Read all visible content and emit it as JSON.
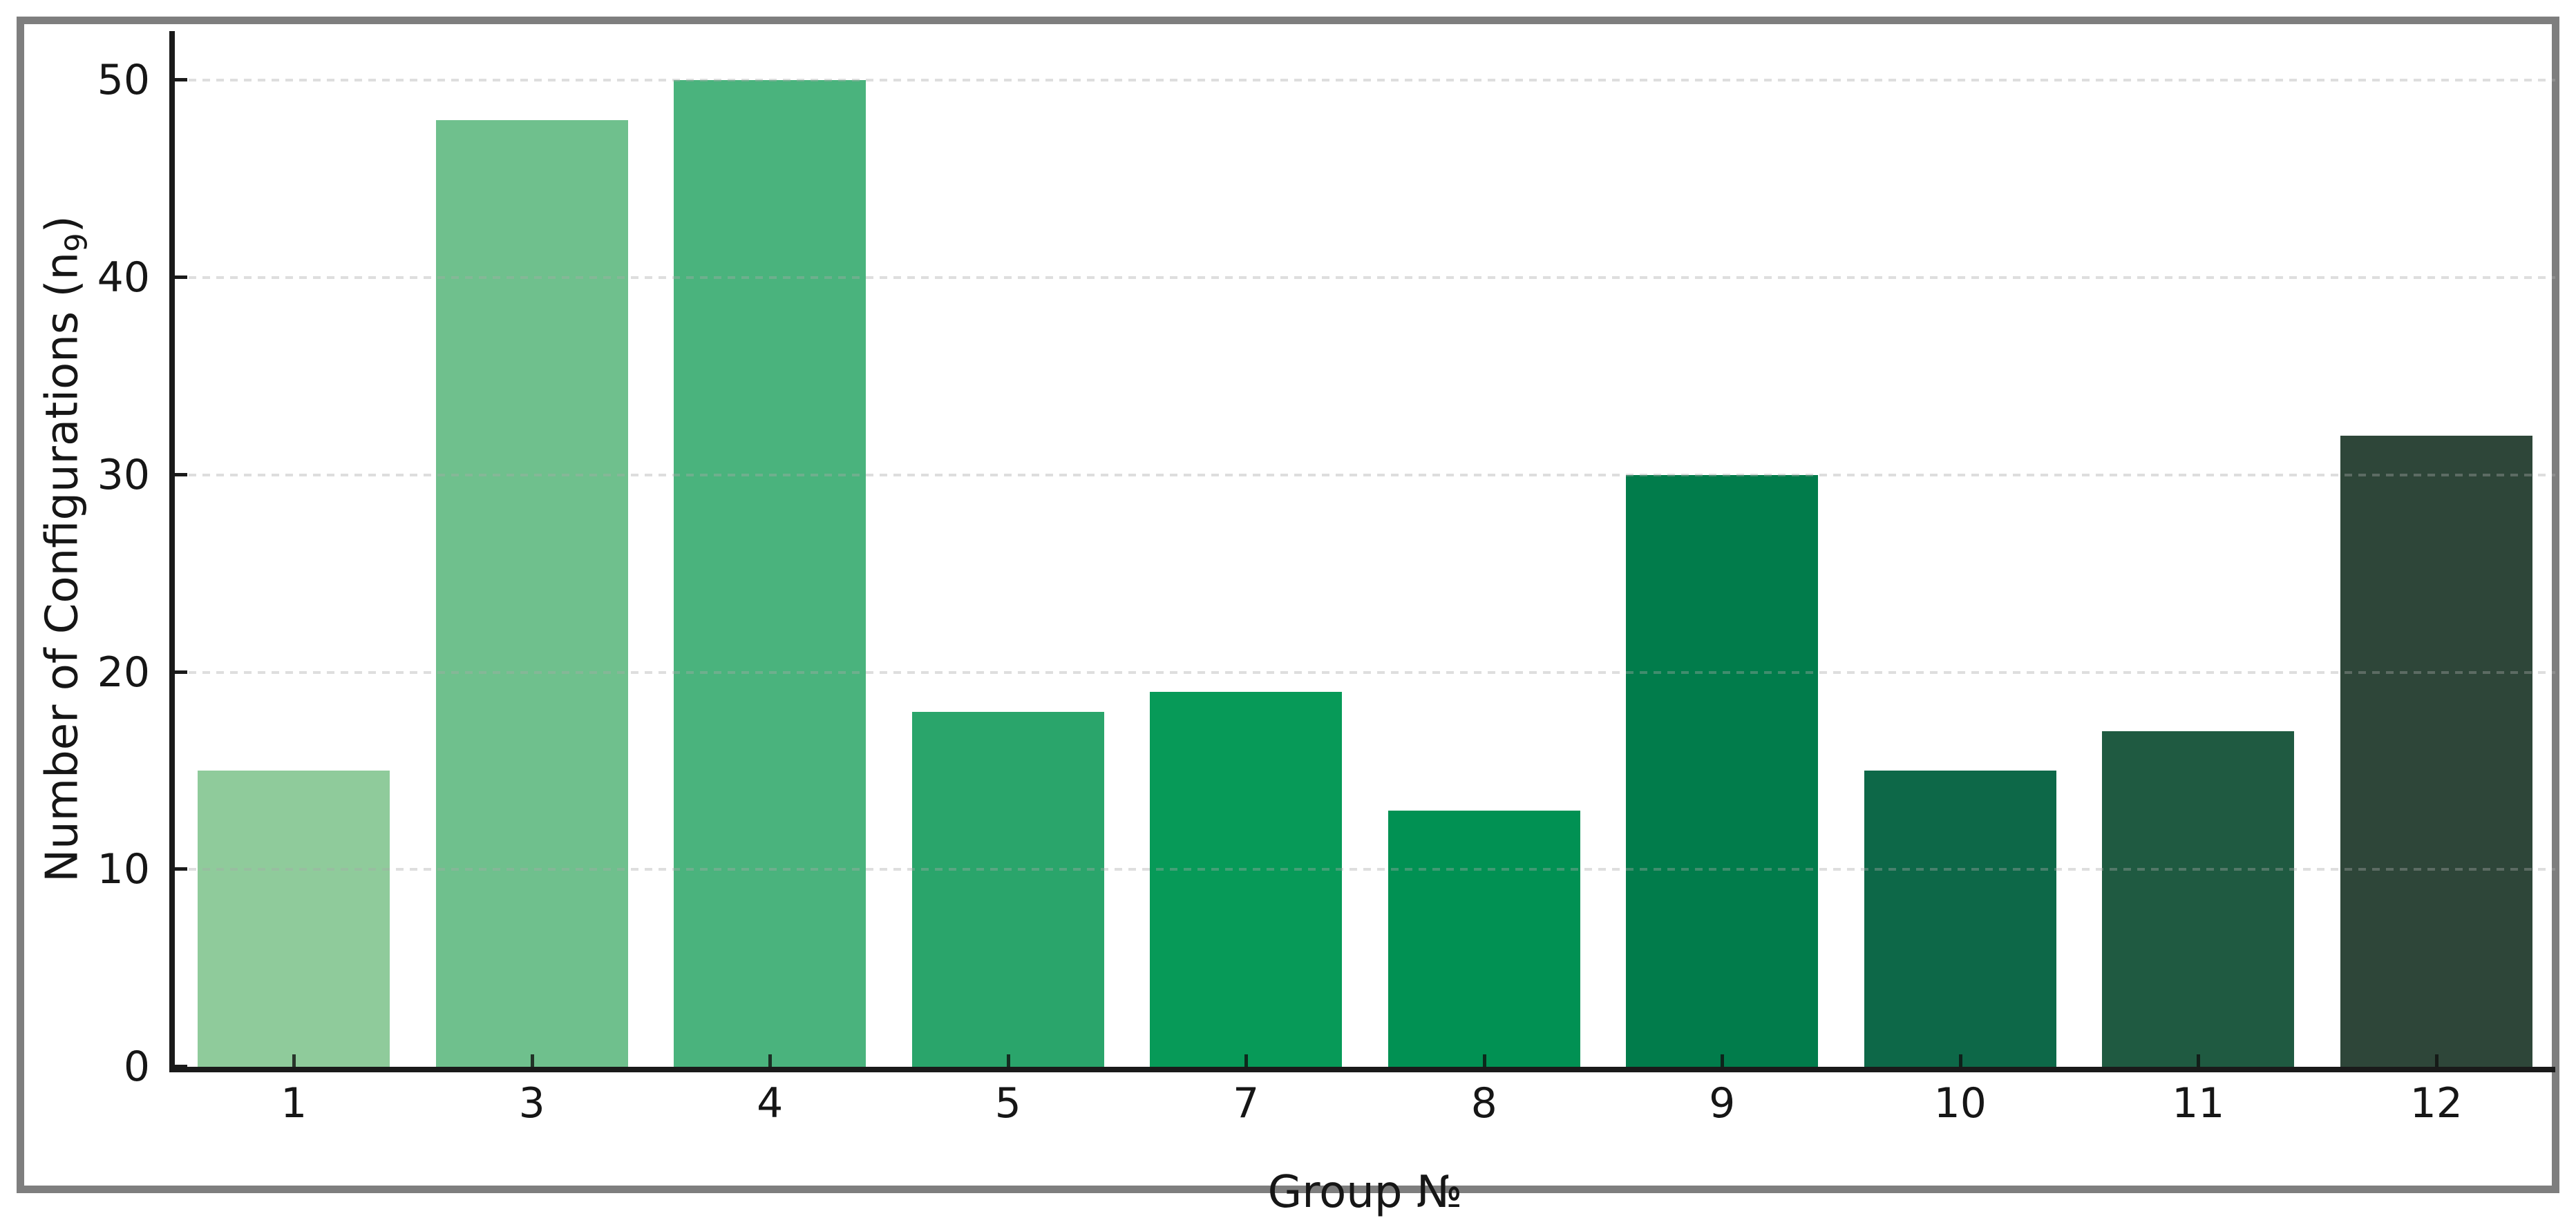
{
  "chart_data": {
    "type": "bar",
    "title": "",
    "xlabel": "Group №",
    "ylabel": "Number of Configurations (n₉)",
    "ylabel_parts": {
      "main": "Number of Configurations (n",
      "sub": "9",
      "close": ")"
    },
    "categories": [
      "1",
      "3",
      "4",
      "5",
      "7",
      "8",
      "9",
      "10",
      "11",
      "12"
    ],
    "values": [
      15,
      48,
      50,
      18,
      19,
      13,
      30,
      15,
      17,
      32
    ],
    "bar_colors": [
      "#8fcb9b",
      "#6fc08d",
      "#4ab37d",
      "#2aa56b",
      "#079a58",
      "#019153",
      "#017c4b",
      "#0d6848",
      "#1f5a41",
      "#2e4639"
    ],
    "yticks": [
      0,
      10,
      20,
      30,
      40,
      50
    ],
    "ylim": [
      0,
      52.5
    ],
    "grid": {
      "axis": "y",
      "style": "dashed",
      "color": "#d6d6d6"
    },
    "legend": "none",
    "axis_color": "#1a1a1a",
    "frame_color": "#7e7e7e",
    "background": "#ffffff"
  }
}
